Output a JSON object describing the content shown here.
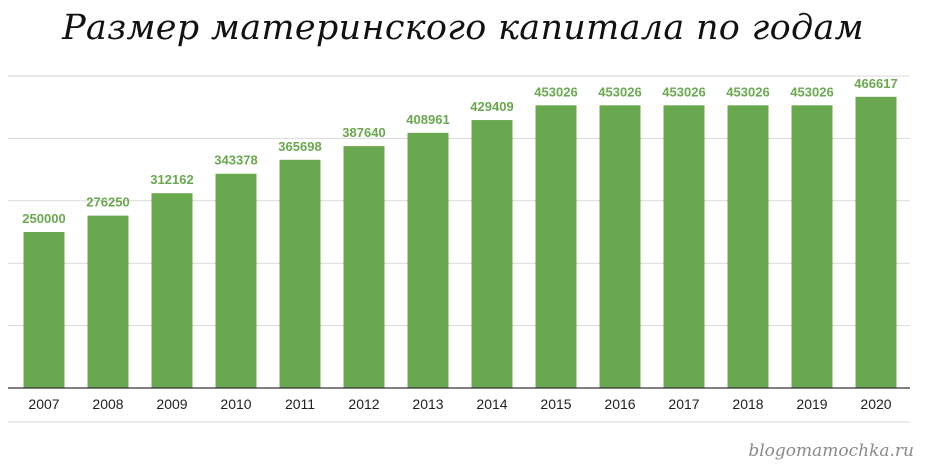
{
  "title": "Размер материнского капитала по годам",
  "watermark": "blogomamochka.ru",
  "colors": {
    "bar": "#6aa84f",
    "label": "#6aa84f",
    "grid": "#d9d9d9",
    "axis": "#333333"
  },
  "chart_data": {
    "type": "bar",
    "title": "Размер материнского капитала по годам",
    "xlabel": "",
    "ylabel": "",
    "categories": [
      "2007",
      "2008",
      "2009",
      "2010",
      "2011",
      "2012",
      "2013",
      "2014",
      "2015",
      "2016",
      "2017",
      "2018",
      "2019",
      "2020"
    ],
    "values": [
      250000,
      276250,
      312162,
      343378,
      365698,
      387640,
      408961,
      429409,
      453026,
      453026,
      453026,
      453026,
      453026,
      466617
    ],
    "data_labels": [
      "250000",
      "276250",
      "312162",
      "343378",
      "365698",
      "387640",
      "408961",
      "429409",
      "453026",
      "453026",
      "453026",
      "453026",
      "453026",
      "466617"
    ],
    "ylim": [
      0,
      500000
    ],
    "grid": true,
    "legend": "none"
  }
}
